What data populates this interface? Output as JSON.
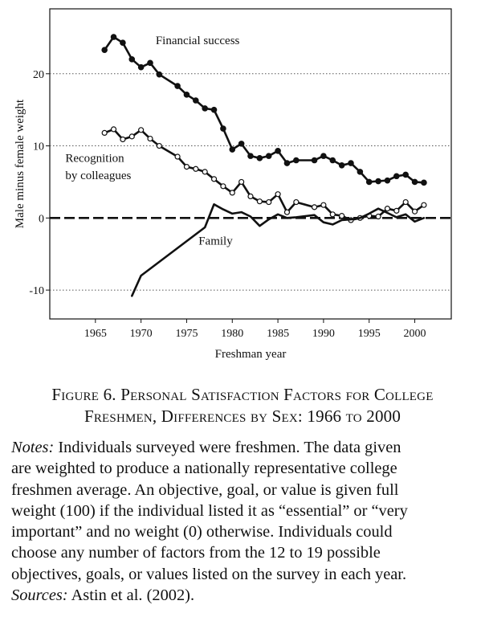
{
  "chart_data": {
    "type": "line",
    "xlabel": "Freshman year",
    "ylabel": "Male minus female weight",
    "xlim": [
      1960,
      2004
    ],
    "ylim": [
      -14,
      29
    ],
    "xticks": [
      1965,
      1970,
      1975,
      1980,
      1985,
      1990,
      1995,
      2000
    ],
    "yticks": [
      -10,
      0,
      10,
      20
    ],
    "yticklabels": [
      "-10",
      "0",
      "10",
      "20"
    ],
    "gridlines_y": [
      -10,
      10,
      20
    ],
    "zero_line": true,
    "series": [
      {
        "name": "Financial success",
        "marker": "filled",
        "x": [
          1966,
          1967,
          1968,
          1969,
          1970,
          1971,
          1972,
          1974,
          1975,
          1976,
          1977,
          1978,
          1979,
          1980,
          1981,
          1982,
          1983,
          1984,
          1985,
          1986,
          1987,
          1989,
          1990,
          1991,
          1992,
          1993,
          1994,
          1995,
          1996,
          1997,
          1998,
          1999,
          2000,
          2001
        ],
        "y": [
          23.3,
          25.1,
          24.3,
          22.0,
          20.9,
          21.5,
          19.9,
          18.3,
          17.1,
          16.3,
          15.2,
          15.0,
          12.4,
          9.5,
          10.3,
          8.6,
          8.3,
          8.6,
          9.3,
          7.6,
          8.0,
          8.0,
          8.6,
          8.0,
          7.3,
          7.6,
          6.4,
          5.0,
          5.1,
          5.2,
          5.8,
          6.0,
          5.0,
          4.9
        ]
      },
      {
        "name": "Recognition by colleagues",
        "marker": "open",
        "x": [
          1966,
          1967,
          1968,
          1969,
          1970,
          1971,
          1972,
          1974,
          1975,
          1976,
          1977,
          1978,
          1979,
          1980,
          1981,
          1982,
          1983,
          1984,
          1985,
          1986,
          1987,
          1989,
          1990,
          1991,
          1992,
          1993,
          1994,
          1995,
          1996,
          1997,
          1998,
          1999,
          2000,
          2001
        ],
        "y": [
          11.8,
          12.3,
          10.9,
          11.3,
          12.2,
          11.0,
          10.0,
          8.5,
          7.1,
          6.8,
          6.4,
          5.4,
          4.4,
          3.5,
          5.0,
          3.0,
          2.3,
          2.2,
          3.3,
          0.8,
          2.2,
          1.5,
          1.8,
          0.5,
          0.3,
          -0.3,
          0.0,
          0.3,
          0.2,
          1.3,
          1.0,
          2.2,
          0.9,
          1.8
        ]
      },
      {
        "name": "Family",
        "marker": "none",
        "x": [
          1969,
          1970,
          1977,
          1978,
          1979,
          1980,
          1981,
          1982,
          1983,
          1984,
          1985,
          1986,
          1987,
          1989,
          1990,
          1991,
          1992,
          1993,
          1994,
          1995,
          1996,
          1997,
          1998,
          1999,
          2000,
          2001
        ],
        "y": [
          -10.8,
          -8.0,
          -1.3,
          1.9,
          1.2,
          0.6,
          0.8,
          0.2,
          -1.1,
          -0.2,
          0.5,
          0.0,
          0.1,
          0.4,
          -0.6,
          -0.9,
          -0.3,
          -0.2,
          0.0,
          0.6,
          1.3,
          0.7,
          0.1,
          0.5,
          -0.5,
          0.0
        ]
      }
    ],
    "annotations": [
      {
        "text": "Financial success",
        "x": 1971.6,
        "y": 24.1
      },
      {
        "text": "Recognition",
        "x": 1961.7,
        "y": 7.8
      },
      {
        "text": "by colleagues",
        "x": 1961.7,
        "y": 5.4
      },
      {
        "text": "Family",
        "x": 1976.3,
        "y": -3.7
      }
    ]
  },
  "caption": {
    "figure_label": "Figure 6.",
    "line1": "Personal Satisfaction Factors for College",
    "line2": "Freshmen, Differences by Sex: 1966 to 2000"
  },
  "notes": {
    "notes_label": "Notes:",
    "line1": "Individuals surveyed were freshmen. The data given",
    "line2": "are weighted to produce a nationally representative college",
    "line3": "freshmen average. An objective, goal, or value is given full",
    "line4": "weight (100) if the individual listed it as “essential” or “very",
    "line5": "important” and no weight (0) otherwise. Individuals could",
    "line6": "choose any number of factors from the 12 to 19 possible",
    "line7": "objectives, goals, or values listed on the survey in each year.",
    "sources_label": "Sources:",
    "sources_text": "Astin et al. (2002)."
  }
}
